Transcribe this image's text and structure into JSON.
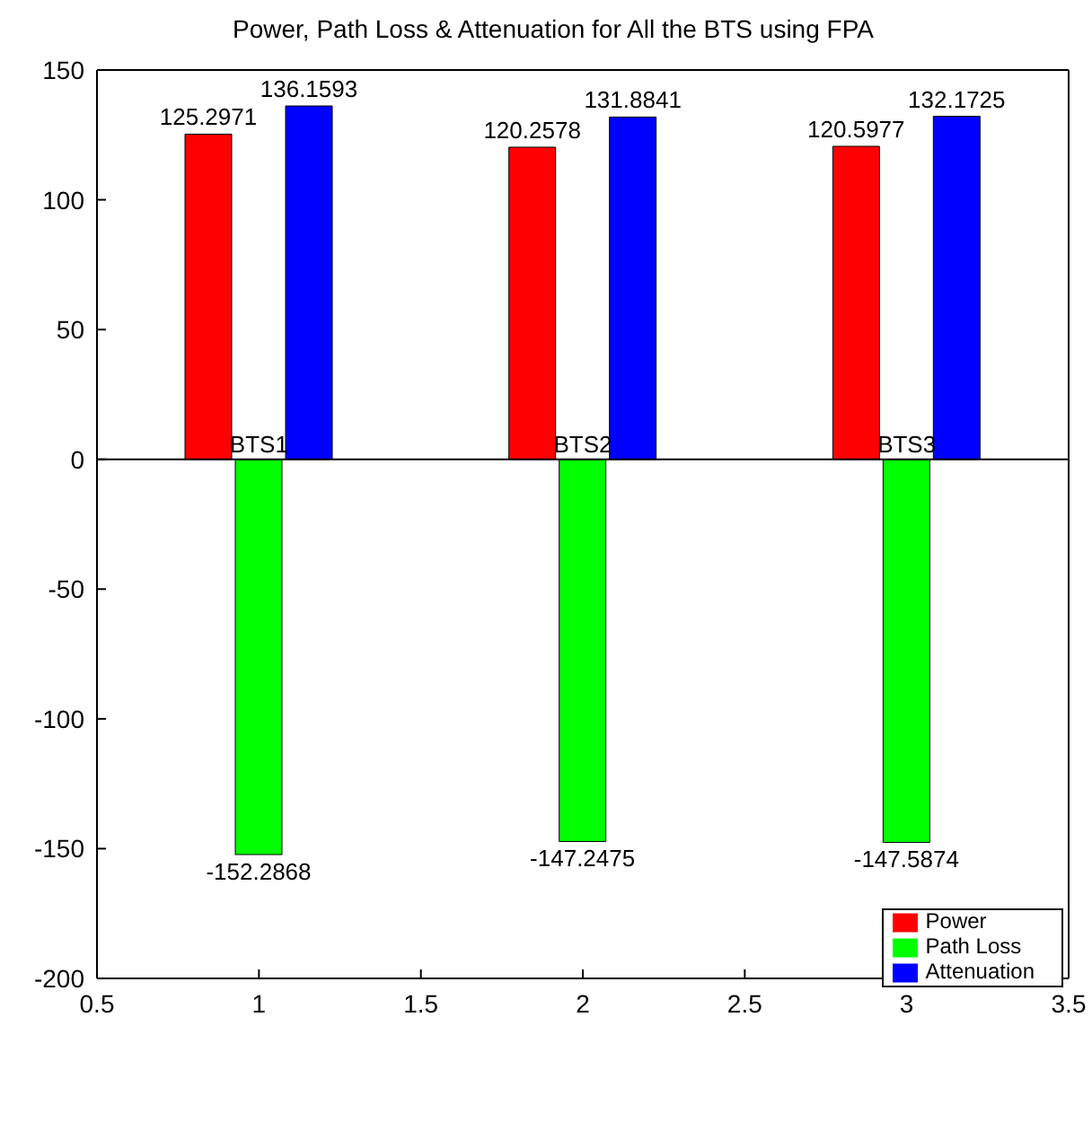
{
  "chart_data": {
    "type": "bar",
    "title": "Power, Path Loss & Attenuation for All the BTS using FPA",
    "x": [
      1,
      2,
      3
    ],
    "series": [
      {
        "name": "Power",
        "color": "#ff0000",
        "values": [
          125.2971,
          120.2578,
          120.5977
        ]
      },
      {
        "name": "Path Loss",
        "color": "#00ff00",
        "values": [
          -152.2868,
          -147.2475,
          -147.5874
        ]
      },
      {
        "name": "Attenuation",
        "color": "#0000ff",
        "values": [
          136.1593,
          131.8841,
          132.1725
        ]
      }
    ],
    "xlim": [
      0.5,
      3.5
    ],
    "xticks": [
      0.5,
      1,
      1.5,
      2,
      2.5,
      3,
      3.5
    ],
    "ylim": [
      -200,
      150
    ],
    "yticks": [
      -200,
      -150,
      -100,
      -50,
      0,
      50,
      100,
      150
    ],
    "ref_lines": [
      {
        "axis": "y",
        "value": 0,
        "color": "#000000"
      }
    ],
    "annotations": [
      {
        "text": "BTS1",
        "x": 1,
        "y": 0
      },
      {
        "text": "BTS2",
        "x": 2,
        "y": 0
      },
      {
        "text": "BTS3",
        "x": 3,
        "y": 0
      }
    ],
    "data_labels": true,
    "grid": false,
    "legend": "bottom right"
  }
}
